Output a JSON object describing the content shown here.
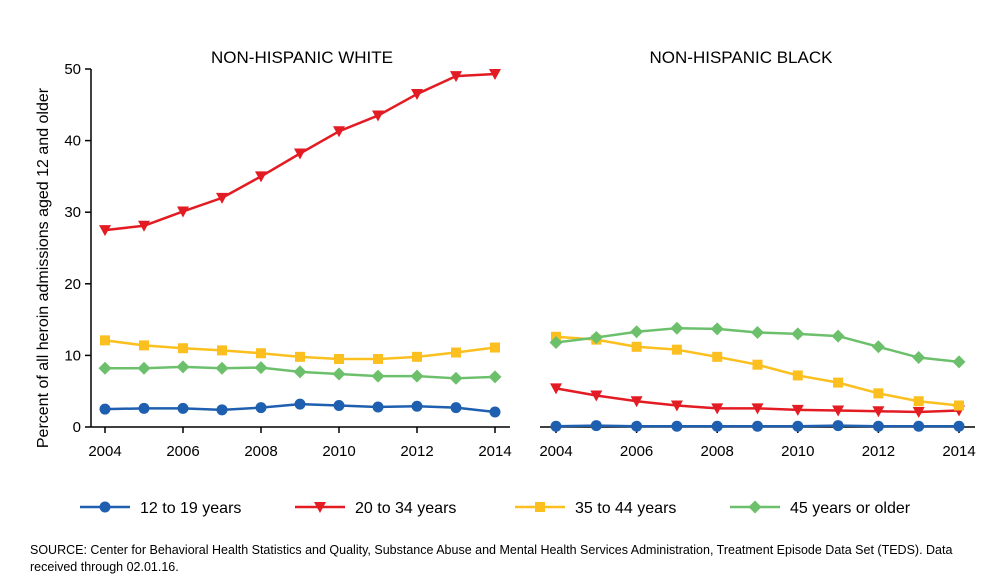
{
  "chart_data": {
    "type": "line",
    "ylabel": "Percent of all heroin admissions aged 12 and older",
    "ylim": [
      0,
      50
    ],
    "yticks": [
      0,
      10,
      20,
      30,
      40,
      50
    ],
    "x": [
      2004,
      2005,
      2006,
      2007,
      2008,
      2009,
      2010,
      2011,
      2012,
      2013,
      2014
    ],
    "xticks": [
      "2004",
      "2006",
      "2008",
      "2010",
      "2012",
      "2014"
    ],
    "legend_position": "bottom",
    "series_meta": [
      {
        "name": "12 to 19 years",
        "color": "#1f5fb0",
        "marker": "circle"
      },
      {
        "name": "20 to 34 years",
        "color": "#e31b23",
        "marker": "triangle-down"
      },
      {
        "name": "35 to 44 years",
        "color": "#fbbf1f",
        "marker": "square"
      },
      {
        "name": "45 years or older",
        "color": "#6cc06c",
        "marker": "diamond"
      }
    ],
    "panels": [
      {
        "title": "NON-HISPANIC WHITE",
        "series": [
          {
            "name": "12 to 19 years",
            "values": [
              2.5,
              2.6,
              2.6,
              2.4,
              2.7,
              3.2,
              3.0,
              2.8,
              2.9,
              2.7,
              2.1
            ]
          },
          {
            "name": "20 to 34 years",
            "values": [
              27.5,
              28.1,
              30.1,
              32.0,
              35.0,
              38.2,
              41.3,
              43.5,
              46.5,
              49.0,
              49.3
            ]
          },
          {
            "name": "35 to 44 years",
            "values": [
              12.1,
              11.4,
              11.0,
              10.7,
              10.3,
              9.8,
              9.5,
              9.5,
              9.8,
              10.4,
              11.1
            ]
          },
          {
            "name": "45 years or older",
            "values": [
              8.2,
              8.2,
              8.4,
              8.2,
              8.3,
              7.7,
              7.4,
              7.1,
              7.1,
              6.8,
              7.0
            ]
          }
        ]
      },
      {
        "title": "NON-HISPANIC BLACK",
        "series": [
          {
            "name": "12 to 19 years",
            "values": [
              0.1,
              0.2,
              0.1,
              0.1,
              0.1,
              0.1,
              0.1,
              0.2,
              0.1,
              0.1,
              0.1
            ]
          },
          {
            "name": "20 to 34 years",
            "values": [
              5.4,
              4.4,
              3.6,
              3.0,
              2.6,
              2.6,
              2.4,
              2.3,
              2.2,
              2.1,
              2.3
            ]
          },
          {
            "name": "35 to 44 years",
            "values": [
              12.6,
              12.2,
              11.2,
              10.8,
              9.8,
              8.7,
              7.2,
              6.2,
              4.7,
              3.6,
              3.0
            ]
          },
          {
            "name": "45 years or older",
            "values": [
              11.8,
              12.5,
              13.3,
              13.8,
              13.7,
              13.2,
              13.0,
              12.7,
              11.2,
              9.7,
              9.1
            ]
          }
        ]
      }
    ]
  },
  "source_text": "SOURCE: Center for Behavioral Health Statistics and Quality, Substance Abuse and Mental Health Services Administration, Treatment Episode Data Set (TEDS). Data received through 02.01.16."
}
